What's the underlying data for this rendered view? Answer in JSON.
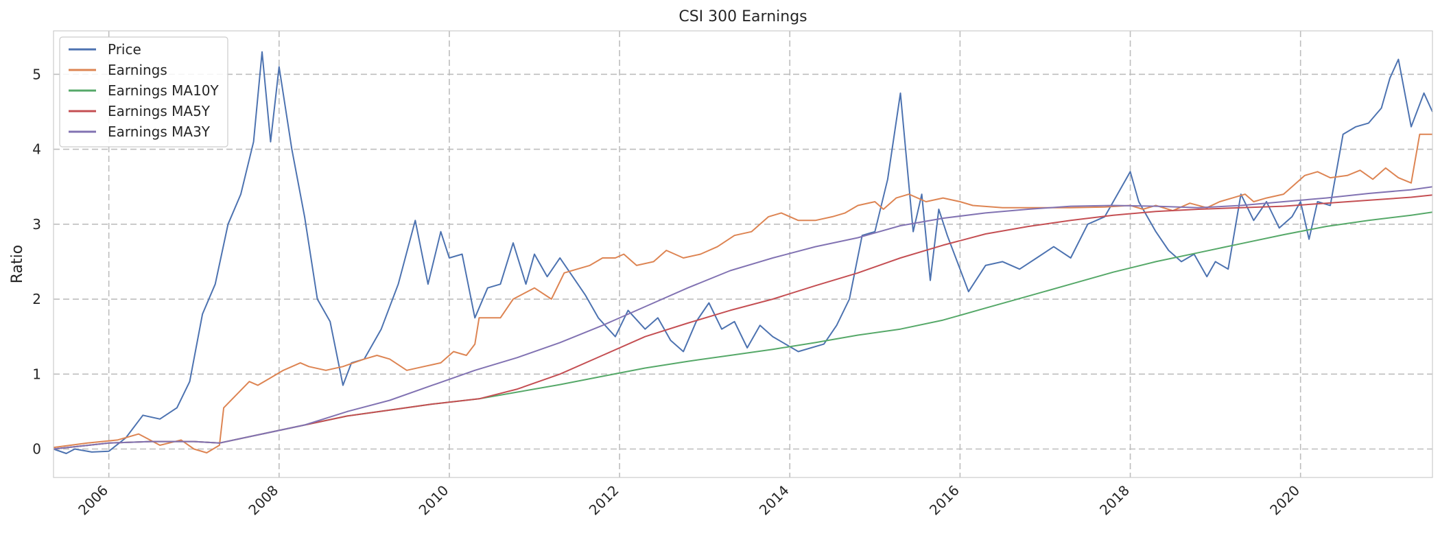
{
  "chart_data": {
    "type": "line",
    "title": "CSI 300 Earnings",
    "xlabel": "",
    "ylabel": "Ratio",
    "xlim": [
      2005.35,
      2021.55
    ],
    "ylim": [
      -0.38,
      5.58
    ],
    "x_ticks": [
      2006,
      2008,
      2010,
      2012,
      2014,
      2016,
      2018,
      2020
    ],
    "x_tick_labels": [
      "2006",
      "2008",
      "2010",
      "2012",
      "2014",
      "2016",
      "2018",
      "2020"
    ],
    "y_ticks": [
      0,
      1,
      2,
      3,
      4,
      5
    ],
    "y_tick_labels": [
      "0",
      "1",
      "2",
      "3",
      "4",
      "5"
    ],
    "grid": true,
    "legend_position": "top-left",
    "series": [
      {
        "name": "Price",
        "color": "#4c72b0",
        "x": [
          2005.35,
          2005.5,
          2005.6,
          2005.8,
          2006.0,
          2006.2,
          2006.4,
          2006.6,
          2006.8,
          2006.95,
          2007.1,
          2007.25,
          2007.4,
          2007.55,
          2007.7,
          2007.8,
          2007.9,
          2008.0,
          2008.15,
          2008.3,
          2008.45,
          2008.6,
          2008.75,
          2008.85,
          2009.0,
          2009.2,
          2009.4,
          2009.6,
          2009.75,
          2009.9,
          2010.0,
          2010.15,
          2010.3,
          2010.45,
          2010.6,
          2010.75,
          2010.9,
          2011.0,
          2011.15,
          2011.3,
          2011.45,
          2011.6,
          2011.75,
          2011.95,
          2012.1,
          2012.3,
          2012.45,
          2012.6,
          2012.75,
          2012.9,
          2013.05,
          2013.2,
          2013.35,
          2013.5,
          2013.65,
          2013.8,
          2013.95,
          2014.1,
          2014.25,
          2014.4,
          2014.55,
          2014.7,
          2014.85,
          2015.0,
          2015.15,
          2015.3,
          2015.45,
          2015.55,
          2015.65,
          2015.75,
          2015.85,
          2016.0,
          2016.1,
          2016.3,
          2016.5,
          2016.7,
          2016.9,
          2017.1,
          2017.3,
          2017.5,
          2017.7,
          2017.85,
          2018.0,
          2018.1,
          2018.3,
          2018.45,
          2018.6,
          2018.75,
          2018.9,
          2019.0,
          2019.15,
          2019.3,
          2019.45,
          2019.6,
          2019.75,
          2019.9,
          2020.0,
          2020.1,
          2020.2,
          2020.35,
          2020.5,
          2020.65,
          2020.8,
          2020.95,
          2021.05,
          2021.15,
          2021.3,
          2021.45,
          2021.55
        ],
        "values": [
          0.0,
          -0.06,
          0.0,
          -0.04,
          -0.03,
          0.15,
          0.45,
          0.4,
          0.55,
          0.9,
          1.8,
          2.2,
          3.0,
          3.4,
          4.1,
          5.3,
          4.1,
          5.1,
          4.0,
          3.1,
          2.0,
          1.7,
          0.85,
          1.15,
          1.2,
          1.6,
          2.2,
          3.05,
          2.2,
          2.9,
          2.55,
          2.6,
          1.75,
          2.15,
          2.2,
          2.75,
          2.2,
          2.6,
          2.3,
          2.55,
          2.3,
          2.05,
          1.75,
          1.5,
          1.85,
          1.6,
          1.75,
          1.45,
          1.3,
          1.7,
          1.95,
          1.6,
          1.7,
          1.35,
          1.65,
          1.5,
          1.4,
          1.3,
          1.35,
          1.4,
          1.65,
          2.0,
          2.85,
          2.9,
          3.6,
          4.75,
          2.9,
          3.4,
          2.25,
          3.2,
          2.85,
          2.4,
          2.1,
          2.45,
          2.5,
          2.4,
          2.55,
          2.7,
          2.55,
          3.0,
          3.1,
          3.4,
          3.7,
          3.3,
          2.9,
          2.65,
          2.5,
          2.6,
          2.3,
          2.5,
          2.4,
          3.4,
          3.05,
          3.3,
          2.95,
          3.1,
          3.3,
          2.8,
          3.3,
          3.25,
          4.2,
          4.3,
          4.35,
          4.55,
          4.95,
          5.2,
          4.3,
          4.75,
          4.5
        ]
      },
      {
        "name": "Earnings",
        "color": "#dd8452",
        "x": [
          2005.35,
          2005.75,
          2006.1,
          2006.35,
          2006.6,
          2006.85,
          2007.0,
          2007.15,
          2007.3,
          2007.35,
          2007.65,
          2007.75,
          2007.9,
          2008.05,
          2008.25,
          2008.35,
          2008.55,
          2008.75,
          2009.0,
          2009.15,
          2009.3,
          2009.5,
          2009.7,
          2009.9,
          2010.05,
          2010.2,
          2010.3,
          2010.35,
          2010.6,
          2010.75,
          2011.0,
          2011.2,
          2011.35,
          2011.5,
          2011.65,
          2011.8,
          2011.95,
          2012.05,
          2012.2,
          2012.4,
          2012.55,
          2012.75,
          2012.95,
          2013.15,
          2013.35,
          2013.55,
          2013.75,
          2013.9,
          2014.1,
          2014.3,
          2014.5,
          2014.65,
          2014.8,
          2015.0,
          2015.1,
          2015.25,
          2015.4,
          2015.6,
          2015.8,
          2016.0,
          2016.15,
          2016.5,
          2016.9,
          2017.3,
          2017.7,
          2018.0,
          2018.15,
          2018.3,
          2018.5,
          2018.7,
          2018.9,
          2019.05,
          2019.2,
          2019.35,
          2019.45,
          2019.6,
          2019.8,
          2019.95,
          2020.05,
          2020.2,
          2020.35,
          2020.55,
          2020.7,
          2020.85,
          2021.0,
          2021.15,
          2021.3,
          2021.4,
          2021.55
        ],
        "values": [
          0.02,
          0.08,
          0.12,
          0.2,
          0.05,
          0.12,
          0.0,
          -0.05,
          0.05,
          0.55,
          0.9,
          0.85,
          0.95,
          1.05,
          1.15,
          1.1,
          1.05,
          1.1,
          1.2,
          1.25,
          1.2,
          1.05,
          1.1,
          1.15,
          1.3,
          1.25,
          1.4,
          1.75,
          1.75,
          2.0,
          2.15,
          2.0,
          2.35,
          2.4,
          2.45,
          2.55,
          2.55,
          2.6,
          2.45,
          2.5,
          2.65,
          2.55,
          2.6,
          2.7,
          2.85,
          2.9,
          3.1,
          3.15,
          3.05,
          3.05,
          3.1,
          3.15,
          3.25,
          3.3,
          3.2,
          3.35,
          3.4,
          3.3,
          3.35,
          3.3,
          3.25,
          3.22,
          3.22,
          3.22,
          3.23,
          3.25,
          3.2,
          3.25,
          3.18,
          3.28,
          3.22,
          3.3,
          3.35,
          3.4,
          3.3,
          3.35,
          3.4,
          3.55,
          3.65,
          3.7,
          3.62,
          3.65,
          3.72,
          3.6,
          3.75,
          3.62,
          3.55,
          4.2,
          4.2
        ]
      },
      {
        "name": "Earnings MA10Y",
        "color": "#55a868",
        "x": [
          2005.35,
          2006.0,
          2006.5,
          2007.0,
          2007.3,
          2007.8,
          2008.3,
          2008.8,
          2009.3,
          2009.8,
          2010.35,
          2010.8,
          2011.3,
          2011.8,
          2012.3,
          2012.8,
          2013.3,
          2013.8,
          2014.3,
          2014.8,
          2015.3,
          2015.8,
          2016.3,
          2016.8,
          2017.3,
          2017.8,
          2018.3,
          2018.8,
          2019.3,
          2019.8,
          2020.3,
          2020.8,
          2021.3,
          2021.55
        ],
        "values": [
          0.0,
          0.08,
          0.1,
          0.1,
          0.08,
          0.2,
          0.32,
          0.44,
          0.52,
          0.6,
          0.67,
          0.76,
          0.86,
          0.97,
          1.08,
          1.17,
          1.25,
          1.33,
          1.42,
          1.52,
          1.6,
          1.72,
          1.88,
          2.04,
          2.2,
          2.36,
          2.5,
          2.62,
          2.74,
          2.86,
          2.97,
          3.05,
          3.12,
          3.16
        ]
      },
      {
        "name": "Earnings MA5Y",
        "color": "#c44e52",
        "x": [
          2005.35,
          2006.0,
          2006.5,
          2007.0,
          2007.3,
          2007.8,
          2008.3,
          2008.8,
          2009.3,
          2009.8,
          2010.35,
          2010.8,
          2011.3,
          2011.8,
          2012.3,
          2012.8,
          2013.3,
          2013.8,
          2014.3,
          2014.8,
          2015.3,
          2015.8,
          2016.3,
          2016.8,
          2017.3,
          2017.8,
          2018.3,
          2018.8,
          2019.3,
          2019.8,
          2020.3,
          2020.8,
          2021.3,
          2021.55
        ],
        "values": [
          0.0,
          0.08,
          0.1,
          0.1,
          0.08,
          0.2,
          0.32,
          0.44,
          0.52,
          0.6,
          0.67,
          0.8,
          1.0,
          1.25,
          1.5,
          1.68,
          1.85,
          2.0,
          2.18,
          2.35,
          2.55,
          2.72,
          2.87,
          2.97,
          3.05,
          3.12,
          3.17,
          3.2,
          3.22,
          3.24,
          3.28,
          3.32,
          3.36,
          3.39
        ]
      },
      {
        "name": "Earnings MA3Y",
        "color": "#8172b2",
        "x": [
          2005.35,
          2006.0,
          2006.5,
          2007.0,
          2007.3,
          2007.8,
          2008.3,
          2008.8,
          2009.3,
          2009.8,
          2010.3,
          2010.8,
          2011.3,
          2011.8,
          2012.3,
          2012.8,
          2013.3,
          2013.8,
          2014.3,
          2014.8,
          2015.3,
          2015.8,
          2016.3,
          2016.8,
          2017.3,
          2017.8,
          2018.3,
          2018.8,
          2019.3,
          2019.8,
          2020.3,
          2020.8,
          2021.3,
          2021.55
        ],
        "values": [
          0.0,
          0.08,
          0.1,
          0.1,
          0.08,
          0.2,
          0.32,
          0.5,
          0.65,
          0.85,
          1.05,
          1.22,
          1.42,
          1.65,
          1.9,
          2.15,
          2.38,
          2.55,
          2.7,
          2.82,
          2.98,
          3.08,
          3.15,
          3.2,
          3.24,
          3.25,
          3.24,
          3.22,
          3.25,
          3.3,
          3.35,
          3.41,
          3.46,
          3.5
        ]
      }
    ]
  }
}
